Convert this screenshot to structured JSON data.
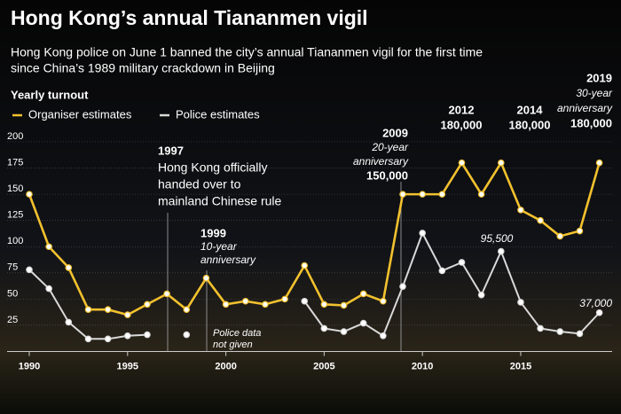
{
  "chart_data": {
    "type": "line",
    "title": "Hong Kong’s annual Tiananmen vigil",
    "subtitle": [
      "Hong Kong police on June 1 banned the city’s annual Tiananmen vigil for the first time",
      "since China’s 1989 military crackdown in Beijing"
    ],
    "legend_title": "Yearly turnout",
    "x": [
      1990,
      1991,
      1992,
      1993,
      1994,
      1995,
      1996,
      1997,
      1998,
      1999,
      2000,
      2001,
      2002,
      2003,
      2004,
      2005,
      2006,
      2007,
      2008,
      2009,
      2010,
      2011,
      2012,
      2013,
      2014,
      2015,
      2016,
      2017,
      2018,
      2019
    ],
    "series": [
      {
        "name": "Organiser estimates",
        "color": "#f2c12e",
        "values": [
          150,
          100,
          80,
          40,
          40,
          35,
          45,
          55,
          40,
          70,
          45,
          48,
          45,
          50,
          82,
          45,
          44,
          55,
          48,
          150,
          150,
          150,
          180,
          150,
          180,
          135,
          125,
          110,
          115,
          180
        ]
      },
      {
        "name": "Police estimates",
        "color": "#d9d9d9",
        "values": [
          78,
          60,
          28,
          12,
          12,
          15,
          16,
          null,
          16,
          null,
          null,
          null,
          null,
          null,
          48,
          22,
          19,
          27,
          15,
          62,
          113,
          77,
          85,
          54,
          95.5,
          47,
          22,
          19,
          17,
          37
        ]
      }
    ],
    "xlim": [
      1990,
      2019
    ],
    "xticks": [
      1990,
      1995,
      2000,
      2005,
      2010,
      2015
    ],
    "ylim": [
      0,
      200
    ],
    "yticks": [
      25,
      50,
      75,
      100,
      125,
      150,
      175,
      200
    ],
    "annotations": [
      [
        "1997",
        "Hong Kong officially",
        "handed over to",
        "mainland Chinese rule"
      ],
      [
        "1999",
        "10-year",
        "anniversary"
      ],
      [
        "Police data",
        "not given"
      ],
      [
        "2009",
        "20-year",
        "anniversary",
        "150,000"
      ],
      [
        "2012",
        "180,000"
      ],
      [
        "2014",
        "180,000"
      ],
      [
        "95,500"
      ],
      [
        "2019",
        "30-year",
        "anniversary",
        "180,000"
      ],
      [
        "37,000"
      ]
    ]
  }
}
